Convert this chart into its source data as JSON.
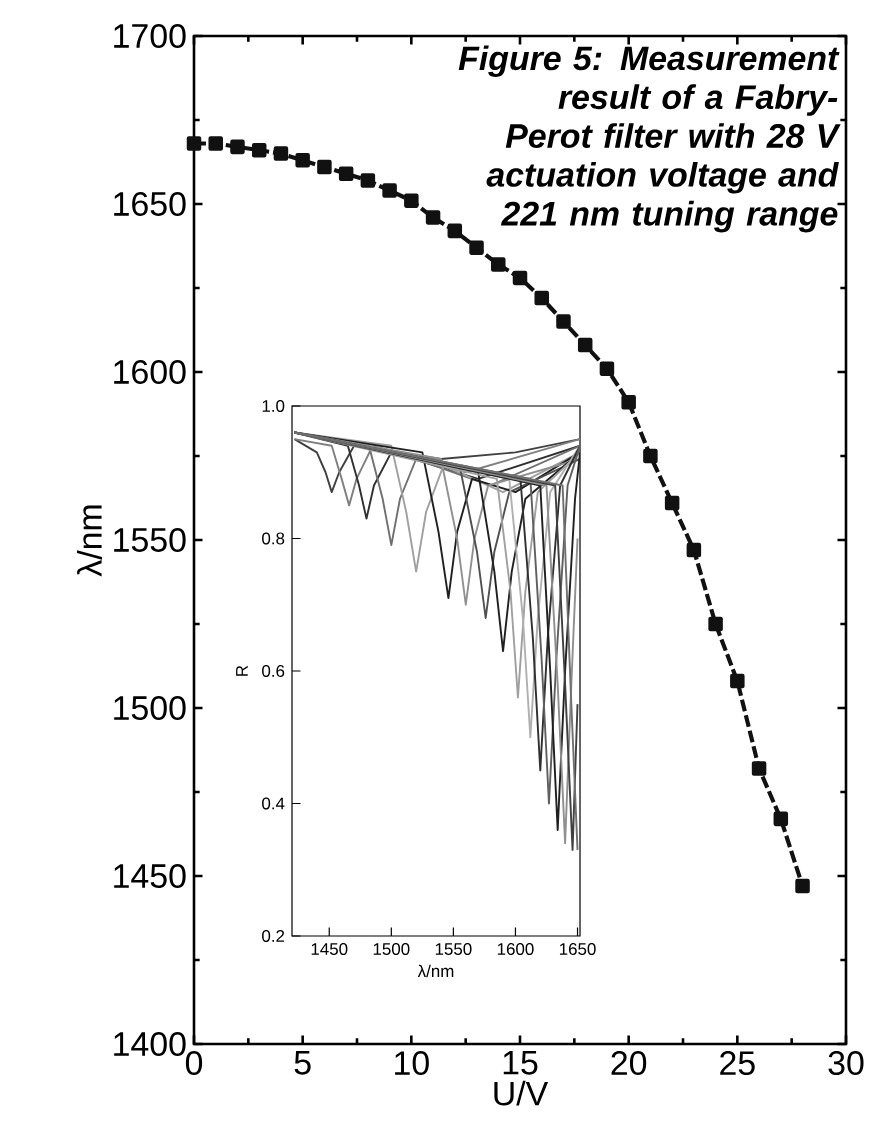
{
  "chart_data": [
    {
      "type": "line",
      "title": "Figure 5: Measurement result of a Fabry-Perot filter with 28 V actuation voltage and 221 nm tuning range",
      "xlabel": "U/V",
      "ylabel": "λ/nm",
      "marker": "square",
      "line_style": "dashed",
      "color": "#111111",
      "x": [
        0,
        1,
        2,
        3,
        4,
        5,
        6,
        7,
        8,
        9,
        10,
        11,
        12,
        13,
        14,
        15,
        16,
        17,
        18,
        19,
        20,
        21,
        22,
        23,
        24,
        25,
        26,
        27,
        28
      ],
      "values": [
        1668,
        1668,
        1667,
        1666,
        1665,
        1663,
        1661,
        1659,
        1657,
        1654,
        1651,
        1646,
        1642,
        1637,
        1632,
        1628,
        1622,
        1615,
        1608,
        1601,
        1591,
        1575,
        1561,
        1547,
        1525,
        1508,
        1482,
        1467,
        1447
      ],
      "xlim": [
        0,
        30
      ],
      "ylim": [
        1400,
        1700
      ],
      "xticks": [
        0,
        5,
        10,
        15,
        20,
        25,
        30
      ],
      "yticks": [
        1400,
        1450,
        1500,
        1550,
        1600,
        1650,
        1700
      ]
    },
    {
      "type": "line",
      "xlabel": "λ/nm",
      "ylabel": "R",
      "marker": "none",
      "line_style": "solid",
      "xlim": [
        1420,
        1652
      ],
      "ylim": [
        0.2,
        1.0
      ],
      "xticks": [
        1450,
        1500,
        1550,
        1600,
        1650
      ],
      "yticks": [
        0.2,
        0.4,
        0.6,
        0.8,
        {
          "value": 1.0,
          "label": "1.0"
        }
      ],
      "series": [
        {
          "color": "#404040",
          "x": [
            1422,
            1440,
            1447,
            1452,
            1458,
            1470,
            1540,
            1600,
            1652
          ],
          "values": [
            0.95,
            0.93,
            0.9,
            0.87,
            0.9,
            0.94,
            0.92,
            0.93,
            0.95
          ]
        },
        {
          "color": "#808080",
          "x": [
            1422,
            1452,
            1460,
            1466,
            1472,
            1485,
            1560,
            1652
          ],
          "values": [
            0.95,
            0.94,
            0.89,
            0.85,
            0.89,
            0.94,
            0.9,
            0.95
          ]
        },
        {
          "color": "#303030",
          "x": [
            1422,
            1465,
            1474,
            1480,
            1486,
            1500,
            1570,
            1652
          ],
          "values": [
            0.96,
            0.94,
            0.88,
            0.83,
            0.88,
            0.93,
            0.89,
            0.94
          ]
        },
        {
          "color": "#707070",
          "x": [
            1422,
            1482,
            1493,
            1500,
            1507,
            1520,
            1580,
            1652
          ],
          "values": [
            0.96,
            0.94,
            0.86,
            0.79,
            0.86,
            0.92,
            0.88,
            0.94
          ]
        },
        {
          "color": "#a0a0a0",
          "x": [
            1422,
            1500,
            1512,
            1520,
            1528,
            1542,
            1590,
            1652
          ],
          "values": [
            0.96,
            0.94,
            0.84,
            0.75,
            0.84,
            0.91,
            0.87,
            0.93
          ]
        },
        {
          "color": "#202020",
          "x": [
            1422,
            1525,
            1538,
            1546,
            1553,
            1565,
            1600,
            1652
          ],
          "values": [
            0.96,
            0.93,
            0.81,
            0.71,
            0.81,
            0.89,
            0.87,
            0.93
          ]
        },
        {
          "color": "#909090",
          "x": [
            1422,
            1540,
            1553,
            1560,
            1567,
            1578,
            1652
          ],
          "values": [
            0.96,
            0.92,
            0.8,
            0.7,
            0.8,
            0.88,
            0.92
          ]
        },
        {
          "color": "#505050",
          "x": [
            1422,
            1555,
            1569,
            1576,
            1583,
            1595,
            1652
          ],
          "values": [
            0.96,
            0.91,
            0.78,
            0.68,
            0.78,
            0.87,
            0.92
          ]
        },
        {
          "color": "#202020",
          "x": [
            1422,
            1570,
            1583,
            1590,
            1597,
            1608,
            1652
          ],
          "values": [
            0.96,
            0.9,
            0.75,
            0.63,
            0.75,
            0.86,
            0.93
          ]
        },
        {
          "color": "#a0a0a0",
          "x": [
            1422,
            1585,
            1596,
            1602,
            1608,
            1618,
            1652
          ],
          "values": [
            0.96,
            0.89,
            0.72,
            0.56,
            0.72,
            0.87,
            0.93
          ]
        },
        {
          "color": "#b0b0b0",
          "x": [
            1422,
            1595,
            1606,
            1612,
            1618,
            1628,
            1652
          ],
          "values": [
            0.96,
            0.89,
            0.68,
            0.5,
            0.68,
            0.87,
            0.94
          ]
        },
        {
          "color": "#303030",
          "x": [
            1422,
            1604,
            1614,
            1620,
            1626,
            1636,
            1652
          ],
          "values": [
            0.96,
            0.89,
            0.65,
            0.45,
            0.65,
            0.88,
            0.94
          ]
        },
        {
          "color": "#606060",
          "x": [
            1422,
            1612,
            1621,
            1627,
            1633,
            1642,
            1652
          ],
          "values": [
            0.96,
            0.89,
            0.62,
            0.4,
            0.62,
            0.88,
            0.94
          ]
        },
        {
          "color": "#202020",
          "x": [
            1422,
            1620,
            1628,
            1634,
            1640,
            1648,
            1652
          ],
          "values": [
            0.96,
            0.88,
            0.6,
            0.36,
            0.6,
            0.86,
            0.93
          ]
        },
        {
          "color": "#909090",
          "x": [
            1422,
            1625,
            1634,
            1640,
            1645,
            1650
          ],
          "values": [
            0.96,
            0.88,
            0.58,
            0.34,
            0.58,
            0.8
          ]
        },
        {
          "color": "#404040",
          "x": [
            1422,
            1632,
            1640,
            1646,
            1650
          ],
          "values": [
            0.96,
            0.88,
            0.58,
            0.33,
            0.55
          ]
        },
        {
          "color": "#707070",
          "x": [
            1422,
            1638,
            1645,
            1650
          ],
          "values": [
            0.96,
            0.88,
            0.55,
            0.33
          ]
        }
      ]
    }
  ]
}
